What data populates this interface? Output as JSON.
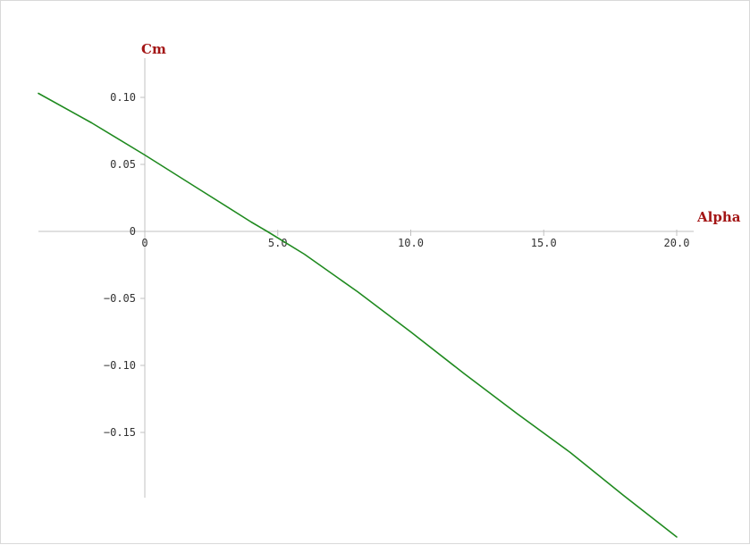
{
  "chart_data": {
    "type": "line",
    "xlabel": "Alpha",
    "ylabel": "Cm",
    "xlim": [
      -4.0,
      20.5
    ],
    "ylim": [
      -0.2,
      0.127
    ],
    "x_ticks": [
      {
        "value": 0,
        "label": "0"
      },
      {
        "value": 5,
        "label": "5.0"
      },
      {
        "value": 10,
        "label": "10.0"
      },
      {
        "value": 15,
        "label": "15.0"
      },
      {
        "value": 20,
        "label": "20.0"
      }
    ],
    "y_ticks": [
      {
        "value": 0.1,
        "label": "0.10"
      },
      {
        "value": 0.05,
        "label": "0.05"
      },
      {
        "value": 0,
        "label": "0"
      },
      {
        "value": -0.05,
        "label": "−0.05"
      },
      {
        "value": -0.1,
        "label": "−0.10"
      },
      {
        "value": -0.15,
        "label": "−0.15"
      }
    ],
    "grid": false,
    "legend": "none",
    "series": [
      {
        "color": "#1f8a1f",
        "x": [
          -4.0,
          -2.0,
          0.0,
          2.0,
          4.0,
          4.6,
          6.0,
          8.0,
          10.0,
          12.0,
          14.0,
          16.0,
          18.0,
          20.0
        ],
        "y": [
          0.103,
          0.081,
          0.057,
          0.032,
          0.007,
          0.0,
          -0.017,
          -0.045,
          -0.075,
          -0.106,
          -0.136,
          -0.165,
          -0.197,
          -0.228
        ]
      }
    ],
    "colors": {
      "axis": "#c0c0c0",
      "axis_title": "#a31515",
      "tick_text": "#333333"
    }
  }
}
